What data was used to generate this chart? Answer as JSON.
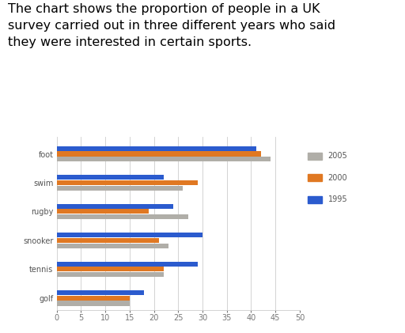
{
  "title": "The chart shows the proportion of people in a UK\nsurvey carried out in three different years who said\nthey were interested in certain sports.",
  "categories": [
    "foot",
    "swim",
    "rugby",
    "snooker",
    "tennis",
    "golf"
  ],
  "years": [
    "2005",
    "2000",
    "1995"
  ],
  "values": {
    "2005": [
      44,
      26,
      27,
      23,
      22,
      15
    ],
    "2000": [
      42,
      29,
      19,
      21,
      22,
      15
    ],
    "1995": [
      41,
      22,
      24,
      30,
      29,
      18
    ]
  },
  "colors": {
    "2005": "#b0aea8",
    "2000": "#e07822",
    "1995": "#2b5bce"
  },
  "xlim": [
    0,
    50
  ],
  "xticks": [
    0,
    5,
    10,
    15,
    20,
    25,
    30,
    35,
    40,
    45,
    50
  ],
  "title_fontsize": 11.5,
  "tick_fontsize": 7,
  "label_fontsize": 7,
  "legend_fontsize": 7
}
